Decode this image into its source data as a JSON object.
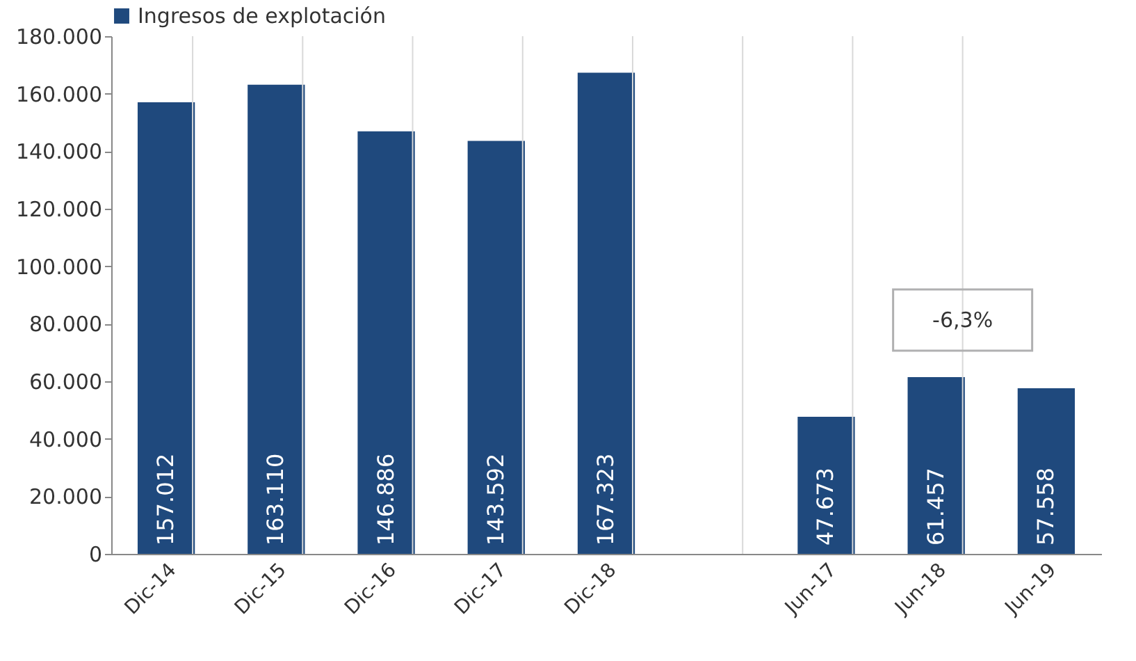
{
  "chart_data": {
    "type": "bar",
    "categories": [
      "Dic-14",
      "Dic-15",
      "Dic-16",
      "Dic-17",
      "Dic-18",
      null,
      "Jun-17",
      "Jun-18",
      "Jun-19"
    ],
    "series": [
      {
        "name": "Ingresos de explotación",
        "color": "#1f497d",
        "values": [
          157012,
          163110,
          146886,
          143592,
          167323,
          null,
          47673,
          61457,
          57558
        ],
        "value_labels": [
          "157.012",
          "163.110",
          "146.886",
          "143.592",
          "167.323",
          null,
          "47.673",
          "61.457",
          "57.558"
        ]
      }
    ],
    "ylim": [
      0,
      180000
    ],
    "yticks": [
      {
        "value": 0,
        "label": "0"
      },
      {
        "value": 20000,
        "label": "20.000"
      },
      {
        "value": 40000,
        "label": "40.000"
      },
      {
        "value": 60000,
        "label": "60.000"
      },
      {
        "value": 80000,
        "label": "80.000"
      },
      {
        "value": 100000,
        "label": "100.000"
      },
      {
        "value": 120000,
        "label": "120.000"
      },
      {
        "value": 140000,
        "label": "140.000"
      },
      {
        "value": 160000,
        "label": "160.000"
      },
      {
        "value": 180000,
        "label": "180.000"
      }
    ],
    "annotations": [
      "-6,3%"
    ],
    "grid": "x",
    "legend": "top"
  }
}
